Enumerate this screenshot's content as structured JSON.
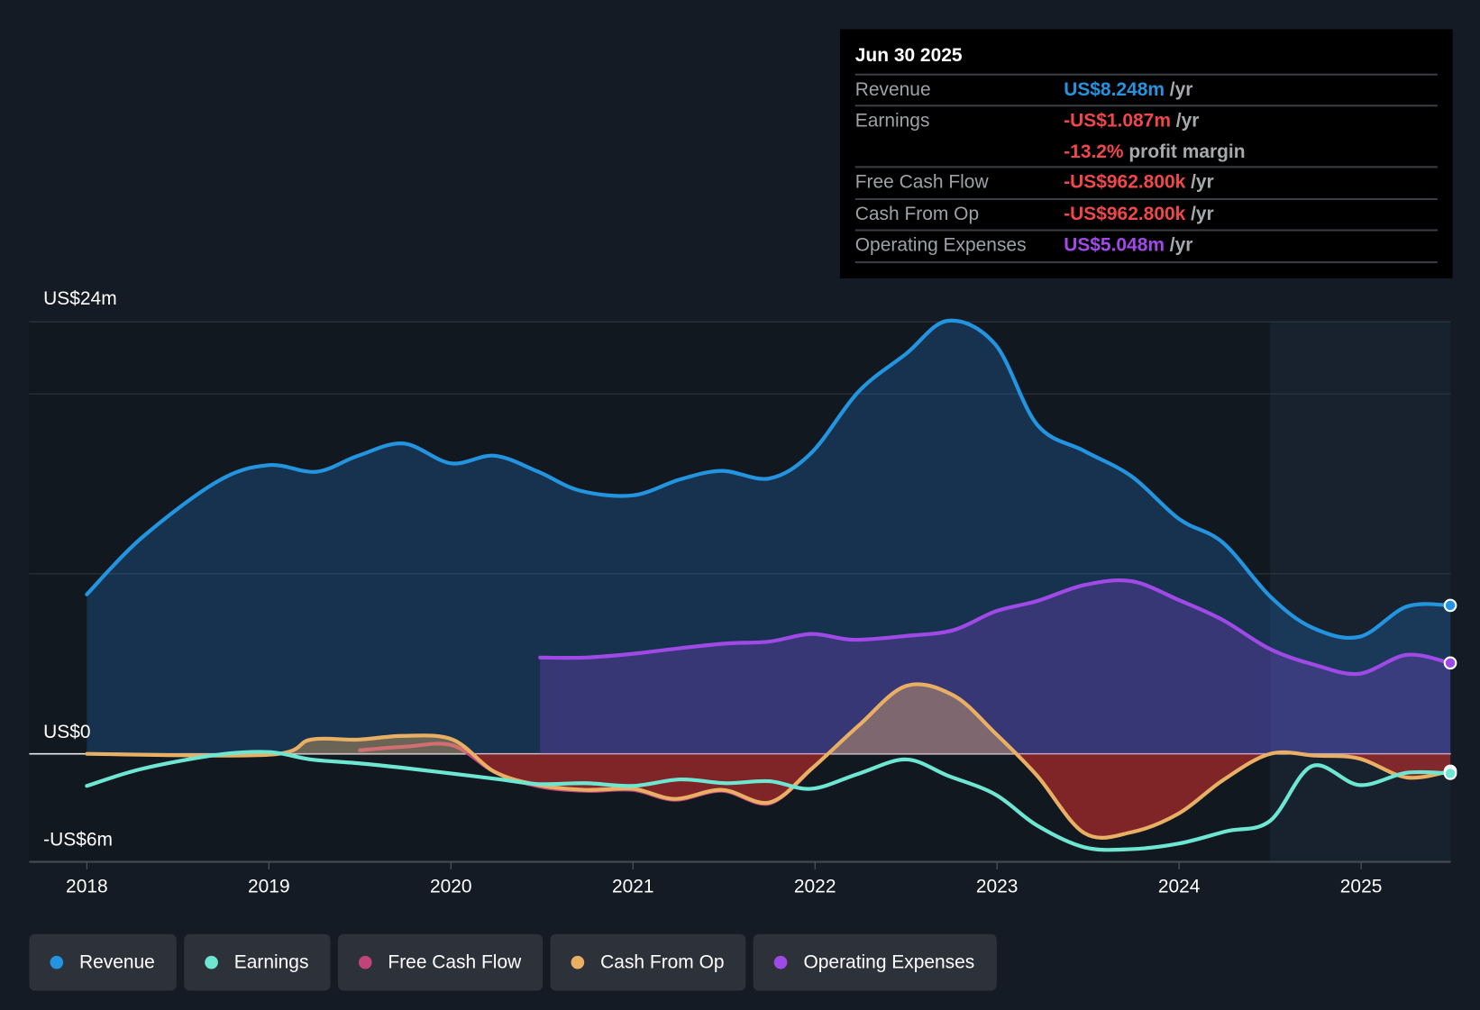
{
  "tooltip": {
    "date": "Jun 30 2025",
    "rows": [
      {
        "label": "Revenue",
        "value": "US$8.248m",
        "suffix": " /yr",
        "color": "#2394df"
      },
      {
        "label": "Earnings",
        "value": "-US$1.087m",
        "suffix": " /yr",
        "color": "#f0474a",
        "extra_value": "-13.2%",
        "extra_suffix": " profit margin"
      },
      {
        "label": "Free Cash Flow",
        "value": "-US$962.800k",
        "suffix": " /yr",
        "color": "#f0474a"
      },
      {
        "label": "Cash From Op",
        "value": "-US$962.800k",
        "suffix": " /yr",
        "color": "#f0474a"
      },
      {
        "label": "Operating Expenses",
        "value": "US$5.048m",
        "suffix": " /yr",
        "color": "#a349ea"
      }
    ]
  },
  "chart_data": {
    "type": "area",
    "ylim": [
      -6,
      24
    ],
    "xlim": [
      2017.7,
      2025.49
    ],
    "y_tick_labels": [
      {
        "v": 24,
        "label": "US$24m"
      },
      {
        "v": 0,
        "label": "US$0"
      },
      {
        "v": -6,
        "label": "-US$6m"
      }
    ],
    "gridlines": [
      24,
      20,
      10,
      0
    ],
    "x_ticks": [
      2018,
      2019,
      2020,
      2021,
      2022,
      2023,
      2024,
      2025
    ],
    "highlight_from": 2024.5,
    "series": [
      {
        "name": "Revenue",
        "color": "#2394df",
        "fill": true,
        "points": [
          [
            2018,
            8.86
          ],
          [
            2018.3,
            11.99
          ],
          [
            2018.72,
            15.15
          ],
          [
            2019,
            16.04
          ],
          [
            2019.26,
            15.67
          ],
          [
            2019.49,
            16.56
          ],
          [
            2019.74,
            17.24
          ],
          [
            2020,
            16.14
          ],
          [
            2020.24,
            16.56
          ],
          [
            2020.48,
            15.67
          ],
          [
            2020.71,
            14.62
          ],
          [
            2021,
            14.36
          ],
          [
            2021.26,
            15.25
          ],
          [
            2021.49,
            15.72
          ],
          [
            2021.75,
            15.3
          ],
          [
            2021.98,
            16.72
          ],
          [
            2022.24,
            20.13
          ],
          [
            2022.5,
            22.22
          ],
          [
            2022.73,
            24.06
          ],
          [
            2022.99,
            22.75
          ],
          [
            2023.22,
            18.29
          ],
          [
            2023.48,
            16.82
          ],
          [
            2023.74,
            15.41
          ],
          [
            2024,
            13.05
          ],
          [
            2024.24,
            11.74
          ],
          [
            2024.5,
            8.75
          ],
          [
            2024.73,
            7.02
          ],
          [
            2024.99,
            6.5
          ],
          [
            2025.25,
            8.18
          ],
          [
            2025.49,
            8.248
          ]
        ]
      },
      {
        "name": "Operating Expenses",
        "color": "#9f4ae6",
        "fill": true,
        "points": [
          [
            2020.49,
            5.35
          ],
          [
            2020.74,
            5.35
          ],
          [
            2021,
            5.56
          ],
          [
            2021.26,
            5.87
          ],
          [
            2021.51,
            6.13
          ],
          [
            2021.75,
            6.24
          ],
          [
            2021.98,
            6.66
          ],
          [
            2022.21,
            6.34
          ],
          [
            2022.5,
            6.55
          ],
          [
            2022.76,
            6.87
          ],
          [
            2022.99,
            7.91
          ],
          [
            2023.22,
            8.49
          ],
          [
            2023.48,
            9.38
          ],
          [
            2023.74,
            9.59
          ],
          [
            2024,
            8.54
          ],
          [
            2024.24,
            7.44
          ],
          [
            2024.5,
            5.82
          ],
          [
            2024.75,
            4.93
          ],
          [
            2024.99,
            4.45
          ],
          [
            2025.25,
            5.5
          ],
          [
            2025.49,
            5.048
          ]
        ]
      },
      {
        "name": "Free Cash Flow",
        "color": "#c0447a",
        "fill": false,
        "points": [
          [
            2019.5,
            0.2
          ],
          [
            2019.75,
            0.4
          ],
          [
            2020.01,
            0.47
          ],
          [
            2020.24,
            -1.0
          ],
          [
            2020.48,
            -1.8
          ],
          [
            2020.74,
            -2.05
          ],
          [
            2021,
            -2.0
          ],
          [
            2021.23,
            -2.55
          ],
          [
            2021.49,
            -2.05
          ],
          [
            2021.75,
            -2.75
          ],
          [
            2021.98,
            -0.84
          ]
        ]
      },
      {
        "name": "Cash From Op",
        "color": "#e9b064",
        "fill": true,
        "points": [
          [
            2018,
            0
          ],
          [
            2019,
            -0.05
          ],
          [
            2019.23,
            0.79
          ],
          [
            2019.49,
            0.79
          ],
          [
            2019.74,
            1.0
          ],
          [
            2020.01,
            0.79
          ],
          [
            2020.24,
            -1.0
          ],
          [
            2020.48,
            -1.73
          ],
          [
            2020.74,
            -2.0
          ],
          [
            2021,
            -1.94
          ],
          [
            2021.23,
            -2.5
          ],
          [
            2021.49,
            -2.0
          ],
          [
            2021.75,
            -2.7
          ],
          [
            2021.98,
            -0.84
          ],
          [
            2022.24,
            1.57
          ],
          [
            2022.5,
            3.77
          ],
          [
            2022.76,
            3.25
          ],
          [
            2022.99,
            1.15
          ],
          [
            2023.22,
            -1.21
          ],
          [
            2023.48,
            -4.4
          ],
          [
            2023.74,
            -4.35
          ],
          [
            2024,
            -3.3
          ],
          [
            2024.24,
            -1.47
          ],
          [
            2024.5,
            0
          ],
          [
            2024.75,
            -0.1
          ],
          [
            2024.99,
            -0.26
          ],
          [
            2025.25,
            -1.31
          ],
          [
            2025.49,
            -0.963
          ]
        ]
      },
      {
        "name": "Earnings",
        "color": "#6ee7d2",
        "fill": false,
        "points": [
          [
            2018,
            -1.78
          ],
          [
            2018.3,
            -0.84
          ],
          [
            2018.72,
            -0.05
          ],
          [
            2019,
            0.1
          ],
          [
            2019.23,
            -0.31
          ],
          [
            2019.49,
            -0.52
          ],
          [
            2019.75,
            -0.79
          ],
          [
            2020.01,
            -1.1
          ],
          [
            2020.27,
            -1.42
          ],
          [
            2020.48,
            -1.68
          ],
          [
            2020.74,
            -1.63
          ],
          [
            2021,
            -1.78
          ],
          [
            2021.26,
            -1.42
          ],
          [
            2021.51,
            -1.63
          ],
          [
            2021.75,
            -1.52
          ],
          [
            2021.98,
            -1.94
          ],
          [
            2022.24,
            -1.1
          ],
          [
            2022.5,
            -0.31
          ],
          [
            2022.73,
            -1.21
          ],
          [
            2022.99,
            -2.25
          ],
          [
            2023.22,
            -3.98
          ],
          [
            2023.48,
            -5.19
          ],
          [
            2023.74,
            -5.29
          ],
          [
            2024,
            -4.98
          ],
          [
            2024.26,
            -4.3
          ],
          [
            2024.5,
            -3.72
          ],
          [
            2024.73,
            -0.68
          ],
          [
            2024.99,
            -1.73
          ],
          [
            2025.25,
            -1.05
          ],
          [
            2025.49,
            -1.087
          ]
        ]
      }
    ],
    "legend": [
      {
        "label": "Revenue",
        "color": "#2394df"
      },
      {
        "label": "Earnings",
        "color": "#6ee7d2"
      },
      {
        "label": "Free Cash Flow",
        "color": "#c0447a"
      },
      {
        "label": "Cash From Op",
        "color": "#e9b064"
      },
      {
        "label": "Operating Expenses",
        "color": "#9f4ae6"
      }
    ]
  }
}
